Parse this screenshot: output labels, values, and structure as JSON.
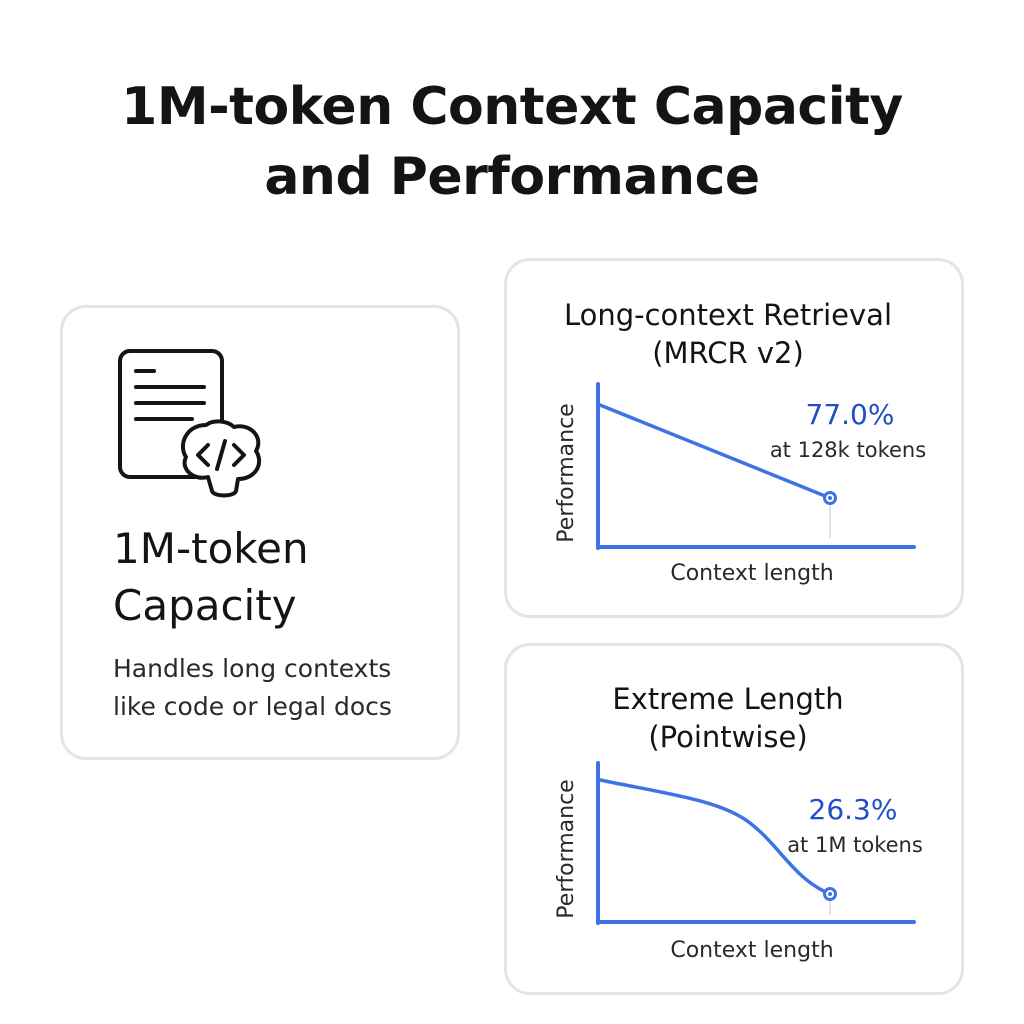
{
  "title": {
    "line1": "1M-token Context Capacity",
    "line2": "and Performance"
  },
  "capacity_card": {
    "icon": "document-code-icon",
    "heading_line1": "1M-token",
    "heading_line2": "Capacity",
    "desc_line1": "Handles long contexts",
    "desc_line2": "like code or legal docs"
  },
  "colors": {
    "accent": "#3d73e6",
    "value_text": "#1f4fc7",
    "border": "#e4e4e4",
    "axis": "#3d73e6"
  },
  "chart_data": [
    {
      "type": "line",
      "title_line1": "Long-context Retrieval",
      "title_line2": "(MRCR v2)",
      "xlabel": "Context length",
      "ylabel": "Performance",
      "highlight": {
        "value": "77.0%",
        "label": "at 128k tokens"
      },
      "shape": "linear-decline",
      "grid": false
    },
    {
      "type": "line",
      "title_line1": "Extreme Length",
      "title_line2": "(Pointwise)",
      "xlabel": "Context length",
      "ylabel": "Performance",
      "highlight": {
        "value": "26.3%",
        "label": "at 1M tokens"
      },
      "shape": "accelerating-decline",
      "grid": false
    }
  ]
}
